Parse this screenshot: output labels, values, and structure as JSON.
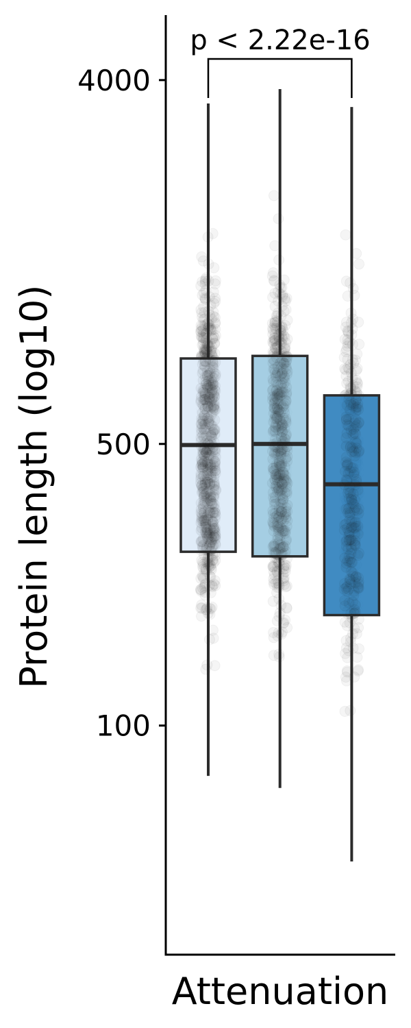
{
  "chart_data": {
    "type": "box",
    "scale_y": "log10",
    "ylabel": "Protein length (log10)",
    "xlabel": "Attenuation",
    "y_ticks": [
      {
        "value": 4000,
        "label": "4000"
      },
      {
        "value": 500,
        "label": "500"
      },
      {
        "value": 100,
        "label": "100"
      }
    ],
    "ylim": [
      27,
      5800
    ],
    "groups": [
      {
        "fill": "#deebf7",
        "min": 75,
        "q1": 270,
        "median": 497,
        "q3": 815,
        "max": 3500
      },
      {
        "fill": "#9ecae1",
        "min": 70,
        "q1": 263,
        "median": 500,
        "q3": 827,
        "max": 3800
      },
      {
        "fill": "#3182bd",
        "min": 46,
        "q1": 188,
        "median": 397,
        "q3": 660,
        "max": 3430
      }
    ],
    "comparison": {
      "label": "p < 2.22e-16",
      "from_group": 1,
      "to_group": 3
    },
    "points_shown": true,
    "legend": "none",
    "grid": false
  }
}
